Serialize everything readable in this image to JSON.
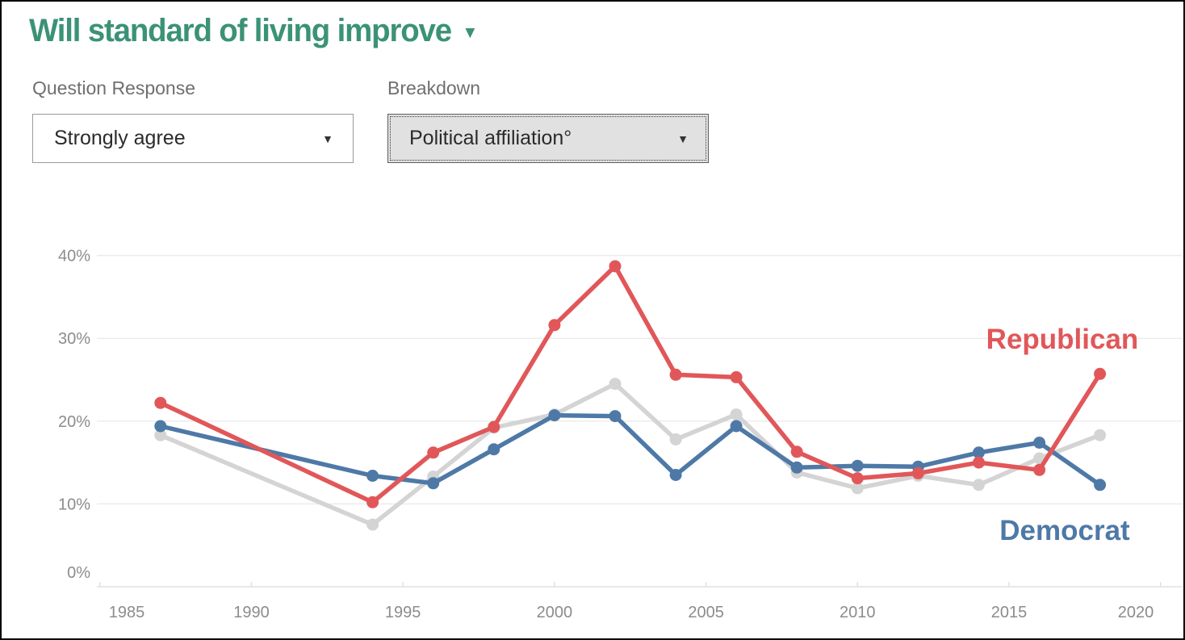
{
  "page": {
    "title": "Will standard of living improve",
    "title_caret": "▼",
    "title_color": "#3b9277"
  },
  "controls": {
    "question_response": {
      "label": "Question Response",
      "value": "Strongly agree",
      "caret": "▼"
    },
    "breakdown": {
      "label": "Breakdown",
      "value": "Political affiliation°",
      "caret": "▼"
    }
  },
  "colors": {
    "republican_red": "#e15759",
    "democrat_blue": "#4e79a7",
    "gray_series": "#d4d4d4",
    "axis_text": "#8c8c8c",
    "gridline": "#ececec",
    "axis_line": "#e0e0e0"
  },
  "chart_data": {
    "type": "line",
    "x": [
      1987,
      1994,
      1996,
      1998,
      2000,
      2002,
      2004,
      2006,
      2008,
      2010,
      2012,
      2014,
      2016,
      2018
    ],
    "series": [
      {
        "name": "republican",
        "label": "Republican",
        "color": "#e15759",
        "values": [
          22.2,
          10.2,
          16.2,
          19.3,
          31.6,
          38.7,
          25.6,
          25.3,
          16.3,
          13.1,
          13.7,
          15.0,
          14.1,
          25.7
        ]
      },
      {
        "name": "democrat",
        "label": "Democrat",
        "color": "#4e79a7",
        "values": [
          19.4,
          13.4,
          12.5,
          16.6,
          20.7,
          20.6,
          13.5,
          19.4,
          14.4,
          14.6,
          14.5,
          16.2,
          17.4,
          12.3
        ]
      },
      {
        "name": "unlabeled-gray",
        "label": "",
        "color": "#d4d4d4",
        "values": [
          18.3,
          7.5,
          13.3,
          19.2,
          20.8,
          24.5,
          17.8,
          20.8,
          13.8,
          11.9,
          13.4,
          12.3,
          15.5,
          18.3
        ]
      }
    ],
    "x_ticks": [
      1985,
      1990,
      1995,
      2000,
      2005,
      2010,
      2015,
      2020
    ],
    "y_ticks": [
      0,
      10,
      20,
      30,
      40
    ],
    "y_tick_suffix": "%",
    "xlim": [
      1984.9,
      2020.7
    ],
    "ylim": [
      0,
      43
    ],
    "grid": "horizontal",
    "legend": "inline-annotations"
  }
}
